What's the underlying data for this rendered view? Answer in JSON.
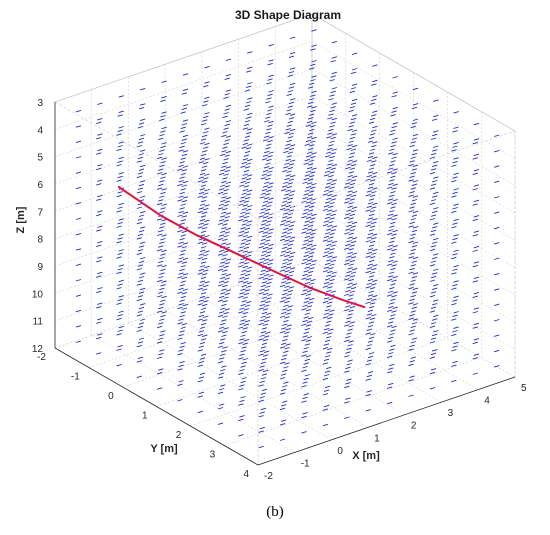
{
  "figure": {
    "caption": "(b)"
  },
  "chart_data": {
    "type": "line",
    "title": "3D Shape Diagram",
    "xlabel": "X [m]",
    "ylabel": "Y [m]",
    "zlabel": "Z [m]",
    "xlim": [
      -2,
      5
    ],
    "ylim": [
      -2,
      4
    ],
    "zlim": [
      3,
      12
    ],
    "z_direction": "reversed",
    "x_ticks": [
      "-2",
      "-1",
      "0",
      "1",
      "2",
      "3",
      "4",
      "5"
    ],
    "y_ticks": [
      "-2",
      "-1",
      "0",
      "1",
      "2",
      "3",
      "4"
    ],
    "z_ticks": [
      "3",
      "4",
      "5",
      "6",
      "7",
      "8",
      "9",
      "10",
      "11",
      "12"
    ],
    "grid": true,
    "series": [
      {
        "color": "#e0143c",
        "x": [
          -1.0,
          -0.8,
          -0.4,
          0.2,
          0.9,
          1.6,
          2.2,
          2.8,
          3.2
        ],
        "y": [
          -1.2,
          -1.0,
          -0.6,
          -0.2,
          0.2,
          0.7,
          1.0,
          1.3,
          1.5
        ],
        "z": [
          6.0,
          6.3,
          6.9,
          7.6,
          8.3,
          9.0,
          9.6,
          10.1,
          10.4
        ]
      }
    ],
    "background_field": {
      "description_source": "grid of short blue line segments filling the volume",
      "color": "#1d2bd8"
    },
    "colors": {
      "grid": "#c8c8c8",
      "box": "#262626",
      "field": "#1d2bd8",
      "curve": "#e0143c"
    }
  }
}
